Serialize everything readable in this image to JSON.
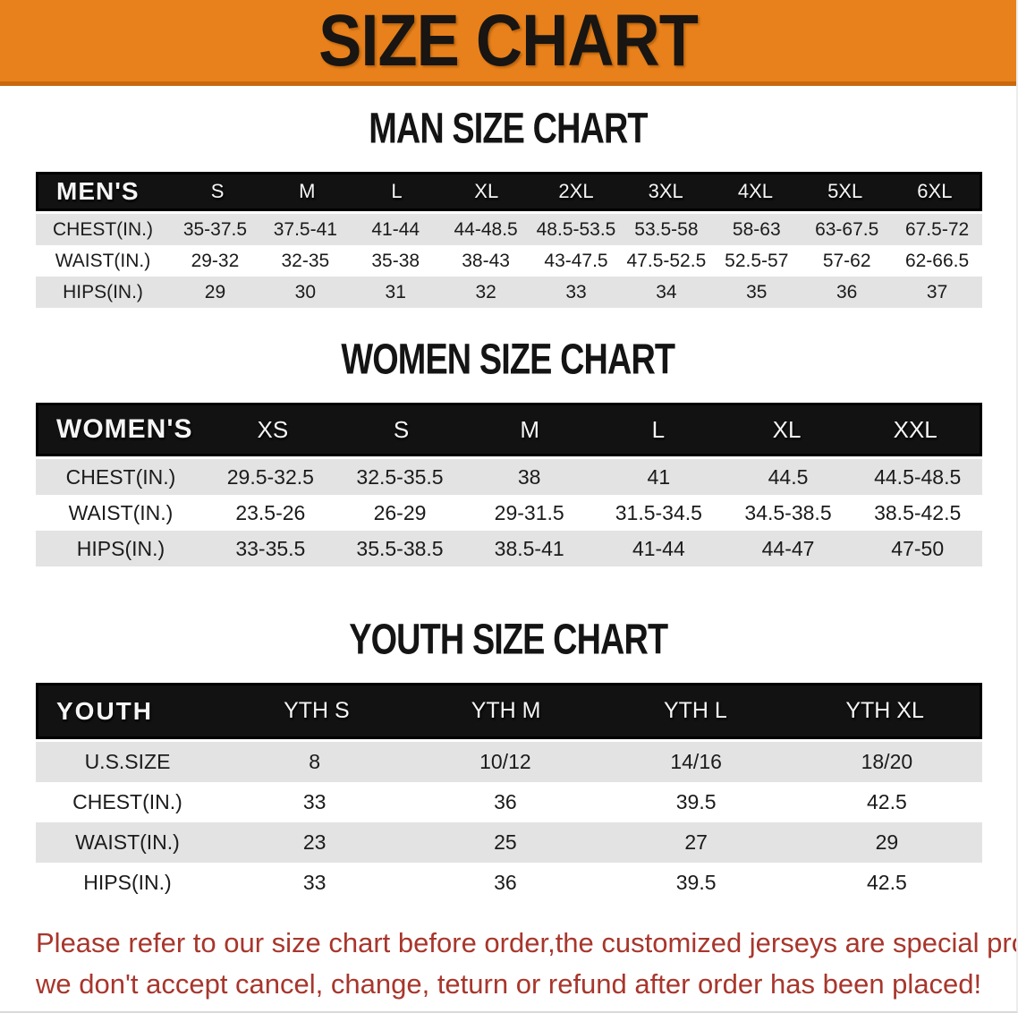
{
  "banner": {
    "title": "SIZE CHART"
  },
  "colors": {
    "banner_bg": "#E8811B",
    "banner_shadow": "#C9680C",
    "header_bar": "#121212",
    "row_gray": "#E3E3E3",
    "row_white": "#FFFFFF",
    "note_red": "#A8362C"
  },
  "sections": [
    {
      "heading": "MAN SIZE CHART",
      "table": {
        "header_label": "MEN'S",
        "columns": [
          "S",
          "M",
          "L",
          "XL",
          "2XL",
          "3XL",
          "4XL",
          "5XL",
          "6XL"
        ],
        "rows": [
          {
            "label": "CHEST(IN.)",
            "values": [
              "35-37.5",
              "37.5-41",
              "41-44",
              "44-48.5",
              "48.5-53.5",
              "53.5-58",
              "58-63",
              "63-67.5",
              "67.5-72"
            ]
          },
          {
            "label": "WAIST(IN.)",
            "values": [
              "29-32",
              "32-35",
              "35-38",
              "38-43",
              "43-47.5",
              "47.5-52.5",
              "52.5-57",
              "57-62",
              "62-66.5"
            ]
          },
          {
            "label": "HIPS(IN.)",
            "values": [
              "29",
              "30",
              "31",
              "32",
              "33",
              "34",
              "35",
              "36",
              "37"
            ]
          }
        ]
      }
    },
    {
      "heading": "WOMEN SIZE CHART",
      "table": {
        "header_label": "WOMEN'S",
        "columns": [
          "XS",
          "S",
          "M",
          "L",
          "XL",
          "XXL"
        ],
        "rows": [
          {
            "label": "CHEST(IN.)",
            "values": [
              "29.5-32.5",
              "32.5-35.5",
              "38",
              "41",
              "44.5",
              "44.5-48.5"
            ]
          },
          {
            "label": "WAIST(IN.)",
            "values": [
              "23.5-26",
              "26-29",
              "29-31.5",
              "31.5-34.5",
              "34.5-38.5",
              "38.5-42.5"
            ]
          },
          {
            "label": "HIPS(IN.)",
            "values": [
              "33-35.5",
              "35.5-38.5",
              "38.5-41",
              "41-44",
              "44-47",
              "47-50"
            ]
          }
        ]
      }
    },
    {
      "heading": "YOUTH SIZE CHART",
      "table": {
        "header_label": "YOUTH",
        "columns": [
          "YTH S",
          "YTH M",
          "YTH L",
          "YTH XL"
        ],
        "rows": [
          {
            "label": "U.S.SIZE",
            "values": [
              "8",
              "10/12",
              "14/16",
              "18/20"
            ]
          },
          {
            "label": "CHEST(IN.)",
            "values": [
              "33",
              "36",
              "39.5",
              "42.5"
            ]
          },
          {
            "label": "WAIST(IN.)",
            "values": [
              "23",
              "25",
              "27",
              "29"
            ]
          },
          {
            "label": "HIPS(IN.)",
            "values": [
              "33",
              "36",
              "39.5",
              "42.5"
            ]
          }
        ]
      }
    }
  ],
  "note": {
    "lines": [
      "Please refer to our size chart before order,the customized jerseys are special products,",
      "we don't accept cancel, change, teturn or refund after order has been placed!"
    ]
  }
}
